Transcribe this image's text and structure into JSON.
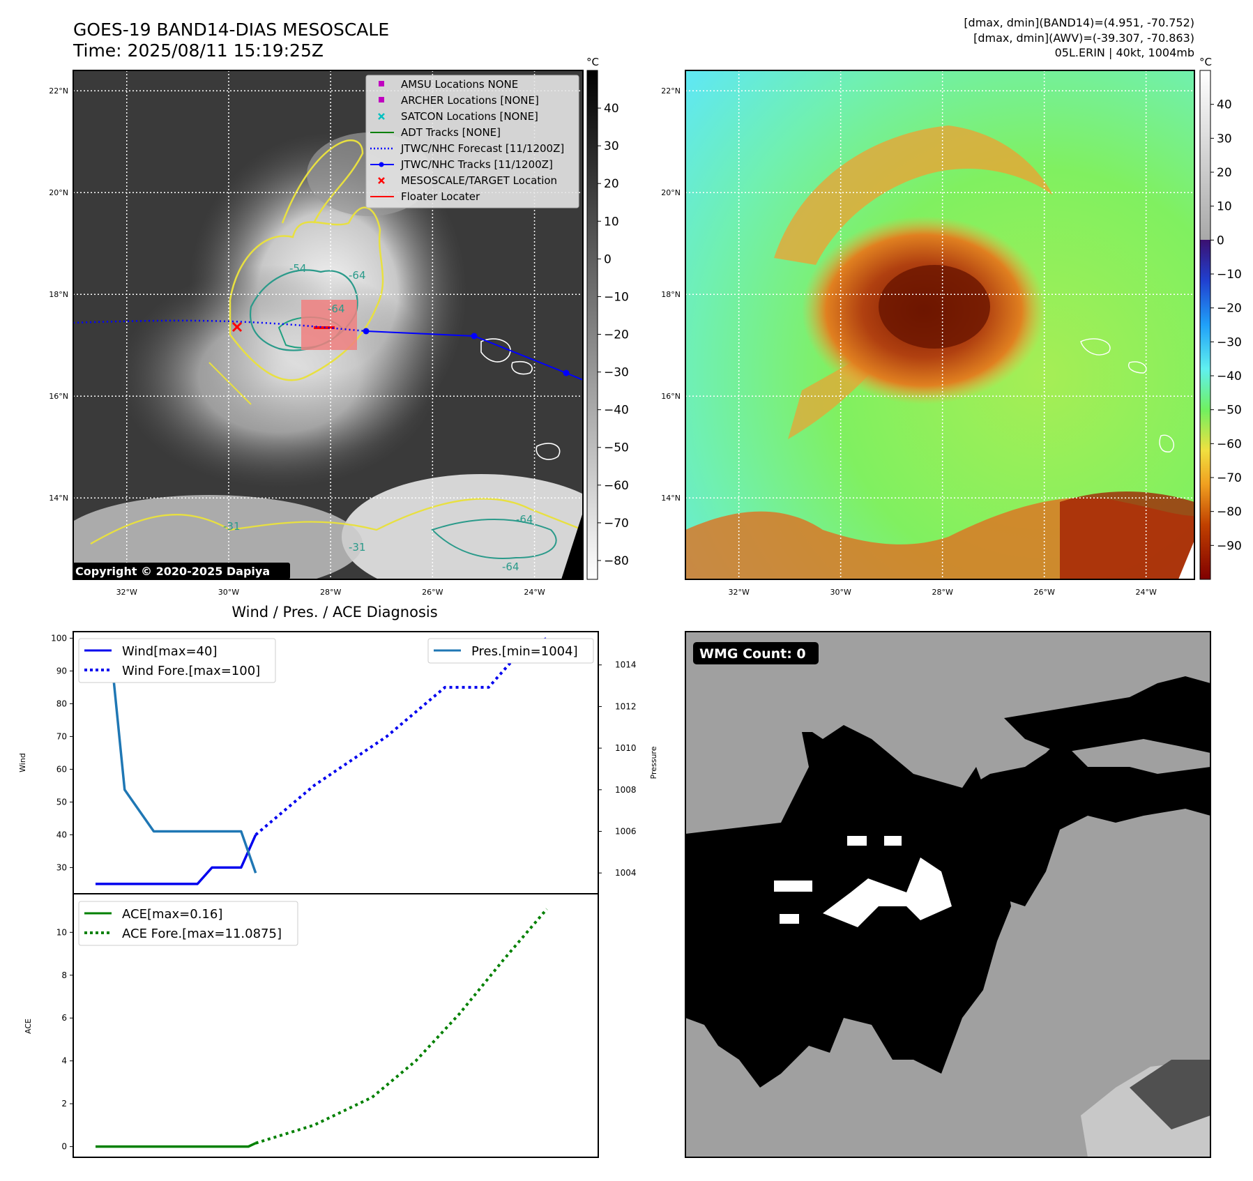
{
  "header": {
    "title": "GOES-19 BAND14-DIAS MESOSCALE",
    "time": "Time: 2025/08/11 15:19:25Z",
    "band14_range": "[dmax, dmin](BAND14)=(4.951, -70.752)",
    "awv_range": "[dmax, dmin](AWV)=(-39.307, -70.863)",
    "storm": "05L.ERIN | 40kt, 1004mb"
  },
  "map_axes": {
    "lat_labels": [
      "22°N",
      "20°N",
      "18°N",
      "16°N",
      "14°N"
    ],
    "lat_values": [
      22,
      20,
      18,
      16,
      14
    ],
    "lon_labels": [
      "32°W",
      "30°W",
      "28°W",
      "26°W",
      "24°W"
    ],
    "lon_values": [
      -32,
      -30,
      -28,
      -26,
      -24
    ],
    "lat_range": [
      12.4,
      22.4
    ],
    "lon_range": [
      -33.05,
      -23.05
    ]
  },
  "ir_colorbar": {
    "unit": "°C",
    "ticks": [
      "40",
      "30",
      "20",
      "10",
      "0",
      "−10",
      "−20",
      "−30",
      "−40",
      "−50",
      "−60",
      "−70",
      "−80"
    ],
    "tick_values": [
      40,
      30,
      20,
      10,
      0,
      -10,
      -20,
      -30,
      -40,
      -50,
      -60,
      -70,
      -80
    ],
    "range": [
      -85,
      50
    ]
  },
  "awv_colorbar": {
    "unit": "°C",
    "ticks": [
      "40",
      "30",
      "20",
      "10",
      "0",
      "−10",
      "−20",
      "−30",
      "−40",
      "−50",
      "−60",
      "−70",
      "−80",
      "−90"
    ],
    "tick_values": [
      40,
      30,
      20,
      10,
      0,
      -10,
      -20,
      -30,
      -40,
      -50,
      -60,
      -70,
      -80,
      -90
    ],
    "range": [
      -100,
      50
    ]
  },
  "legend": {
    "items": [
      {
        "label": "AMSU Locations NONE",
        "color": "#c000c0",
        "marker": "square"
      },
      {
        "label": "ARCHER Locations [NONE]",
        "color": "#c000c0",
        "marker": "square"
      },
      {
        "label": "SATCON Locations [NONE]",
        "color": "#00c0c0",
        "marker": "x"
      },
      {
        "label": "ADT Tracks [NONE]",
        "color": "#008000",
        "marker": "line"
      },
      {
        "label": "JTWC/NHC Forecast [11/1200Z]",
        "color": "#0000ff",
        "marker": "dotted"
      },
      {
        "label": "JTWC/NHC Tracks [11/1200Z]",
        "color": "#0000ff",
        "marker": "line-dot"
      },
      {
        "label": "MESOSCALE/TARGET Location",
        "color": "#ff0000",
        "marker": "x"
      },
      {
        "label": "Floater Locater",
        "color": "#ff0000",
        "marker": "line"
      }
    ]
  },
  "contour_labels": [
    "-54",
    "-64",
    "-64",
    "-31",
    "-64",
    "-31",
    "-64"
  ],
  "copyright": "Copyright © 2020-2025 Dapiya",
  "wmg": {
    "label": "WMG Count: 0"
  },
  "chart_data": [
    {
      "type": "line",
      "title": "Wind / Pres. / ACE Diagnosis",
      "ylabel": "Wind",
      "ylim": [
        22,
        102
      ],
      "x_range": [
        0,
        33
      ],
      "yticks": [
        30,
        40,
        50,
        60,
        70,
        80,
        90,
        100
      ],
      "series": [
        {
          "name": "Wind[max=40]",
          "color": "#0000ee",
          "style": "solid",
          "x": [
            0,
            1,
            2,
            3,
            4,
            5,
            6,
            7,
            8,
            9,
            10,
            11
          ],
          "y": [
            25,
            25,
            25,
            25,
            25,
            25,
            25,
            25,
            30,
            30,
            30,
            40
          ]
        },
        {
          "name": "Wind Fore.[max=100]",
          "color": "#0000ee",
          "style": "dotted",
          "x": [
            11,
            15,
            20,
            24,
            27,
            29,
            31
          ],
          "y": [
            40,
            55,
            70,
            85,
            85,
            95,
            100
          ]
        }
      ]
    },
    {
      "type": "line",
      "ylabel": "Pressure",
      "ylim": [
        1003,
        1015.6
      ],
      "yticks": [
        1004,
        1006,
        1008,
        1010,
        1012,
        1014
      ],
      "series": [
        {
          "name": "Pres.[min=1004]",
          "color": "#1f77b4",
          "style": "solid",
          "x": [
            0,
            1,
            2,
            4,
            5,
            6,
            7,
            8,
            9,
            10,
            11
          ],
          "y": [
            1015,
            1015,
            1008,
            1006,
            1006,
            1006,
            1006,
            1006,
            1006,
            1006,
            1004
          ]
        }
      ]
    },
    {
      "type": "line",
      "ylabel": "ACE",
      "ylim": [
        -0.5,
        11.8
      ],
      "x_range": [
        0,
        33
      ],
      "yticks": [
        0,
        2,
        4,
        6,
        8,
        10
      ],
      "series": [
        {
          "name": "ACE[max=0.16]",
          "color": "#008000",
          "style": "solid",
          "x": [
            0,
            10.5,
            11
          ],
          "y": [
            0,
            0,
            0.16
          ]
        },
        {
          "name": "ACE Fore.[max=11.0875]",
          "color": "#008000",
          "style": "dotted",
          "x": [
            11,
            15,
            19,
            22,
            25,
            28,
            31
          ],
          "y": [
            0.16,
            1.0,
            2.3,
            4.0,
            6.2,
            8.7,
            11.0875
          ]
        }
      ]
    }
  ]
}
